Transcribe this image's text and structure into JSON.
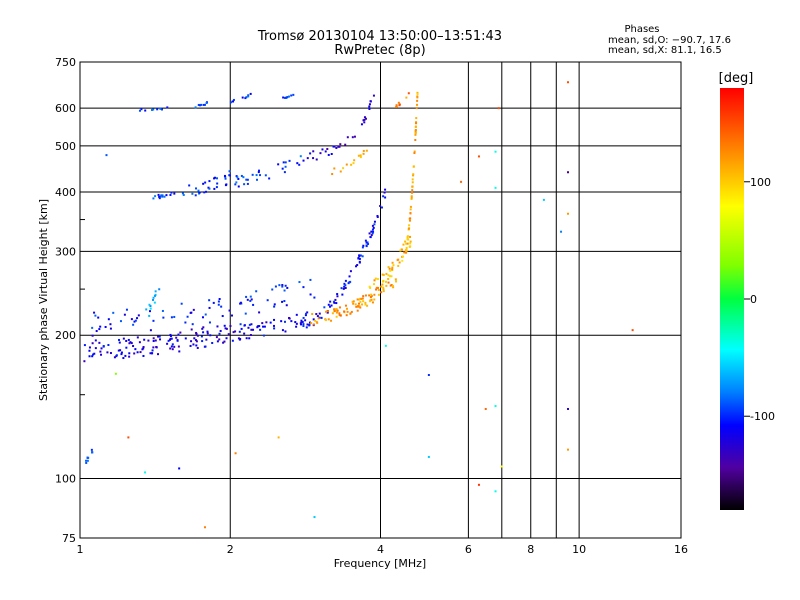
{
  "chart_data": {
    "type": "scatter",
    "title_line1": "Tromsø 20130104 13:50:00–13:51:43",
    "title_line2": "RwPretec (8p)",
    "xlabel": "Frequency [MHz]",
    "ylabel": "Stationary phase Virtual Height [km]",
    "x_scale": "log",
    "y_scale": "log",
    "xlim": [
      1,
      16
    ],
    "ylim": [
      75,
      750
    ],
    "grid": true,
    "x_ticks": [
      1,
      2,
      4,
      6,
      8,
      10,
      16
    ],
    "x_ticks_minor": [
      7,
      9
    ],
    "y_ticks": [
      75,
      100,
      200,
      300,
      400,
      500,
      600,
      750
    ],
    "y_ticks_minor": [
      150,
      250,
      350
    ],
    "stats_title": "Phases",
    "stats_line1": "mean, sd,O: −90.7, 17.6",
    "stats_line2": "mean, sd,X:  81.1, 16.5",
    "colorbar": {
      "label": "[deg]",
      "ticks": [
        100,
        0,
        -100
      ],
      "range": [
        -180,
        180
      ]
    },
    "series": [
      {
        "segments": [
          {
            "x0": 1.02,
            "x1": 1.95,
            "h0": 185,
            "h1": 202,
            "phase": -120,
            "n": 120,
            "jitter": 0.1
          },
          {
            "x0": 1.95,
            "x1": 3.0,
            "h0": 202,
            "h1": 218,
            "phase": -115,
            "n": 70,
            "jitter": 0.08
          },
          {
            "x0": 3.0,
            "x1": 4.1,
            "h0": 218,
            "h1": 400,
            "phase": -110,
            "n": 70,
            "jitter": 0.05
          },
          {
            "x0": 1.05,
            "x1": 3.0,
            "h0": 210,
            "h1": 255,
            "phase": -105,
            "n": 80,
            "jitter": 0.12
          },
          {
            "x0": 1.3,
            "x1": 1.45,
            "h0": 210,
            "h1": 255,
            "phase": -70,
            "n": 12,
            "jitter": 0.06
          },
          {
            "x0": 1.4,
            "x1": 1.55,
            "h0": 390,
            "h1": 400,
            "phase": -95,
            "n": 14,
            "jitter": 0.02
          },
          {
            "x0": 1.6,
            "x1": 2.0,
            "h0": 400,
            "h1": 430,
            "phase": -100,
            "n": 30,
            "jitter": 0.06
          },
          {
            "x0": 2.0,
            "x1": 2.8,
            "h0": 420,
            "h1": 470,
            "phase": -95,
            "n": 30,
            "jitter": 0.06
          },
          {
            "x0": 2.8,
            "x1": 3.5,
            "h0": 470,
            "h1": 520,
            "phase": -125,
            "n": 20,
            "jitter": 0.05
          },
          {
            "x0": 3.5,
            "x1": 3.9,
            "h0": 520,
            "h1": 650,
            "phase": -130,
            "n": 14,
            "jitter": 0.04
          },
          {
            "x0": 1.3,
            "x1": 1.5,
            "h0": 595,
            "h1": 600,
            "phase": -95,
            "n": 10,
            "jitter": 0.01
          },
          {
            "x0": 1.7,
            "x1": 1.8,
            "h0": 605,
            "h1": 615,
            "phase": -95,
            "n": 8,
            "jitter": 0.01
          },
          {
            "x0": 2.0,
            "x1": 2.2,
            "h0": 620,
            "h1": 640,
            "phase": -95,
            "n": 10,
            "jitter": 0.01
          },
          {
            "x0": 2.5,
            "x1": 2.7,
            "h0": 630,
            "h1": 640,
            "phase": -95,
            "n": 8,
            "jitter": 0.01
          },
          {
            "x0": 1.02,
            "x1": 1.06,
            "h0": 108,
            "h1": 115,
            "phase": -100,
            "n": 10,
            "jitter": 0.02
          }
        ]
      },
      {
        "segments": [
          {
            "x0": 2.9,
            "x1": 4.3,
            "h0": 215,
            "h1": 260,
            "phase": 120,
            "n": 90,
            "jitter": 0.06
          },
          {
            "x0": 3.8,
            "x1": 4.6,
            "h0": 250,
            "h1": 320,
            "phase": 110,
            "n": 50,
            "jitter": 0.07
          },
          {
            "x0": 4.5,
            "x1": 4.75,
            "h0": 300,
            "h1": 660,
            "phase": 115,
            "n": 55,
            "jitter": 0.03
          },
          {
            "x0": 3.2,
            "x1": 3.8,
            "h0": 440,
            "h1": 500,
            "phase": 115,
            "n": 14,
            "jitter": 0.04
          },
          {
            "x0": 4.2,
            "x1": 4.6,
            "h0": 600,
            "h1": 650,
            "phase": 130,
            "n": 8,
            "jitter": 0.02
          }
        ]
      },
      {
        "points": [
          [
            1.58,
            105,
            -110
          ],
          [
            1.35,
            103,
            -40
          ],
          [
            1.13,
            478,
            -90
          ],
          [
            1.18,
            166,
            30
          ],
          [
            1.25,
            122,
            150
          ],
          [
            1.78,
            79,
            130
          ],
          [
            2.05,
            113,
            130
          ],
          [
            2.95,
            83,
            -60
          ],
          [
            2.5,
            122,
            110
          ],
          [
            4.1,
            190,
            -40
          ],
          [
            5.0,
            165,
            -100
          ],
          [
            5.0,
            111,
            -60
          ],
          [
            6.3,
            97,
            160
          ],
          [
            6.5,
            140,
            140
          ],
          [
            6.8,
            94,
            -40
          ],
          [
            6.8,
            142,
            -40
          ],
          [
            7.0,
            106,
            80
          ],
          [
            6.3,
            475,
            150
          ],
          [
            6.8,
            486,
            -40
          ],
          [
            6.8,
            408,
            -40
          ],
          [
            8.5,
            385,
            -60
          ],
          [
            9.2,
            330,
            -80
          ],
          [
            9.5,
            440,
            -150
          ],
          [
            9.5,
            360,
            120
          ],
          [
            9.5,
            140,
            -130
          ],
          [
            9.5,
            115,
            120
          ],
          [
            9.5,
            680,
            150
          ],
          [
            12.8,
            205,
            150
          ],
          [
            5.8,
            420,
            140
          ],
          [
            6.9,
            600,
            150
          ]
        ]
      }
    ]
  }
}
